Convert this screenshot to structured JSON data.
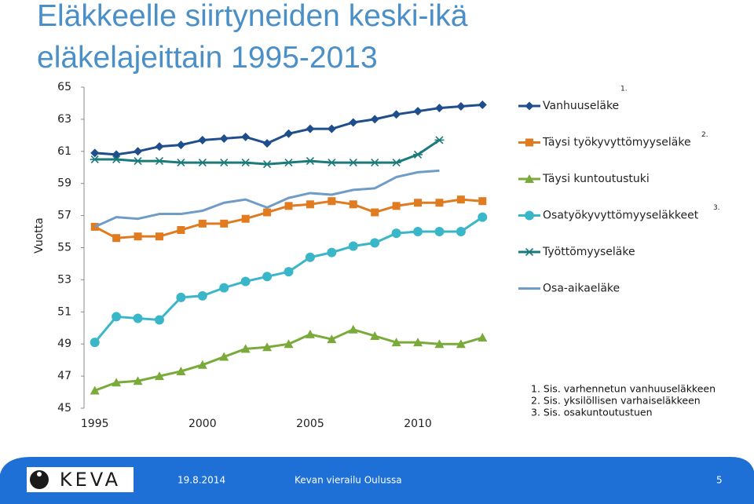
{
  "chart_data": {
    "type": "line",
    "title": "Eläkkeelle siirtyneiden keski-ikä eläkelajeittain 1995-2013",
    "title_lines": [
      "Eläkkeelle siirtyneiden keski-ikä",
      "eläkelajeittain 1995-2013"
    ],
    "y_label": "Vuotta",
    "x": [
      1995,
      1996,
      1997,
      1998,
      1999,
      2000,
      2001,
      2002,
      2003,
      2004,
      2005,
      2006,
      2007,
      2008,
      2009,
      2010,
      2011,
      2012,
      2013
    ],
    "xlim": [
      1994.5,
      2013.5
    ],
    "xticks": [
      1995,
      2000,
      2005,
      2010
    ],
    "ylim": [
      45,
      65
    ],
    "yticks": [
      45,
      47,
      49,
      51,
      53,
      55,
      57,
      59,
      61,
      63,
      65
    ],
    "grid": false,
    "series": [
      {
        "name": "Vanhuuseläke",
        "note": "1.",
        "color": "#1f4e8c",
        "marker": "diamond",
        "values": [
          60.9,
          60.8,
          61.0,
          61.3,
          61.4,
          61.7,
          61.8,
          61.9,
          61.5,
          62.1,
          62.4,
          62.4,
          62.8,
          63.0,
          63.3,
          63.5,
          63.7,
          63.8,
          63.9
        ]
      },
      {
        "name": "Täysi työkyvyttömyyseläke",
        "note": "2.",
        "color": "#e07b20",
        "marker": "square",
        "values": [
          56.3,
          55.6,
          55.7,
          55.7,
          56.1,
          56.5,
          56.5,
          56.8,
          57.2,
          57.6,
          57.7,
          57.9,
          57.7,
          57.2,
          57.6,
          57.8,
          57.8,
          58.0,
          57.9
        ]
      },
      {
        "name": "Täysi kuntoutustuki",
        "color": "#7aab3a",
        "marker": "triangle",
        "values": [
          46.1,
          46.6,
          46.7,
          47.0,
          47.3,
          47.7,
          48.2,
          48.7,
          48.8,
          49.0,
          49.6,
          49.3,
          49.9,
          49.5,
          49.1,
          49.1,
          49.0,
          49.0,
          49.4
        ]
      },
      {
        "name": "Osatyökyvyttömyyseläkkeet",
        "note": "3.",
        "color": "#3ab6c9",
        "marker": "circle",
        "values": [
          49.1,
          50.7,
          50.6,
          50.5,
          51.9,
          52.0,
          52.5,
          52.9,
          53.2,
          53.5,
          54.4,
          54.7,
          55.1,
          55.3,
          55.9,
          56.0,
          56.0,
          56.0,
          56.9
        ]
      },
      {
        "name": "Työttömyyseläke",
        "color": "#1b7a7a",
        "marker": "asterisk",
        "values": [
          60.5,
          60.5,
          60.4,
          60.4,
          60.3,
          60.3,
          60.3,
          60.3,
          60.2,
          60.3,
          60.4,
          60.3,
          60.3,
          60.3,
          60.3,
          60.8,
          61.7,
          null,
          null
        ]
      },
      {
        "name": "Osa-aikaeläke",
        "color": "#6f9cc6",
        "marker": "none",
        "values": [
          56.3,
          56.9,
          56.8,
          57.1,
          57.1,
          57.3,
          57.8,
          58.0,
          57.5,
          58.1,
          58.4,
          58.3,
          58.6,
          58.7,
          59.4,
          59.7,
          59.8,
          null,
          null
        ]
      }
    ],
    "footnotes": [
      "1. Sis. varhennetun vanhuuseläkkeen",
      "2. Sis. yksilöllisen varhaiseläkkeen",
      "3. Sis. osakuntoutustuen"
    ]
  },
  "footer": {
    "logo": "KEVA",
    "date": "19.8.2014",
    "text": "Kevan vierailu Oulussa",
    "page": "5"
  }
}
